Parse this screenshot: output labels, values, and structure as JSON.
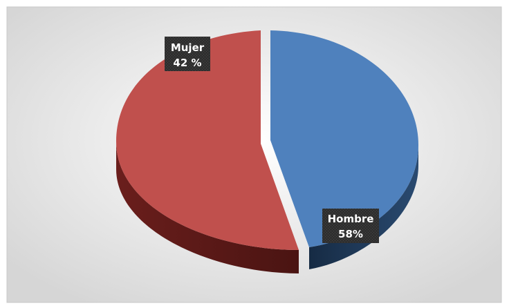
{
  "chart_data": {
    "type": "pie",
    "title": "",
    "slices": [
      {
        "label": "Hombre",
        "percent_label": "58%",
        "value": 58,
        "color": "#4f81bd"
      },
      {
        "label": "Mujer",
        "percent_label": "42 %",
        "value": 42,
        "color": "#c0504d"
      }
    ],
    "legend": "none",
    "style": "3d-exploded"
  }
}
